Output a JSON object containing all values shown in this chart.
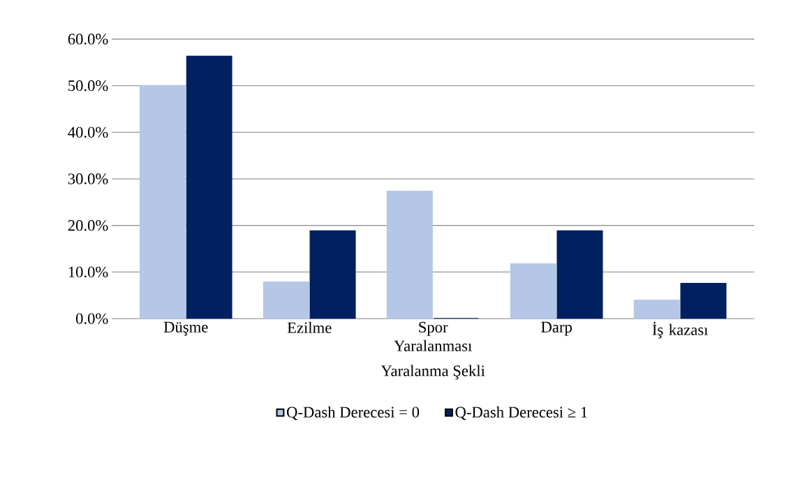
{
  "chart_data": {
    "type": "bar",
    "xlabel": "Yaralanma Şekli",
    "categories": [
      "Düşme",
      "Ezilme",
      "Spor Yaralanması",
      "Darp",
      "İş kazası"
    ],
    "series": [
      {
        "name": "Q-Dash Derecesi = 0",
        "color": "#b4c7e7",
        "values": [
          50.0,
          7.8,
          27.3,
          11.7,
          3.9
        ]
      },
      {
        "name": "Q-Dash Derecesi  ≥ 1",
        "color": "#002060",
        "values": [
          56.3,
          18.8,
          0,
          18.8,
          7.5
        ]
      }
    ],
    "ylim": [
      0,
      60
    ],
    "yticks": [
      {
        "value": 0,
        "label": "0.0%"
      },
      {
        "value": 10,
        "label": "10.0%"
      },
      {
        "value": 20,
        "label": "20.0%"
      },
      {
        "value": 30,
        "label": "30.0%"
      },
      {
        "value": 40,
        "label": "40.0%"
      },
      {
        "value": 50,
        "label": "50.0%"
      },
      {
        "value": 60,
        "label": "60.0%"
      }
    ],
    "grid": "y",
    "legend": "bottom"
  }
}
